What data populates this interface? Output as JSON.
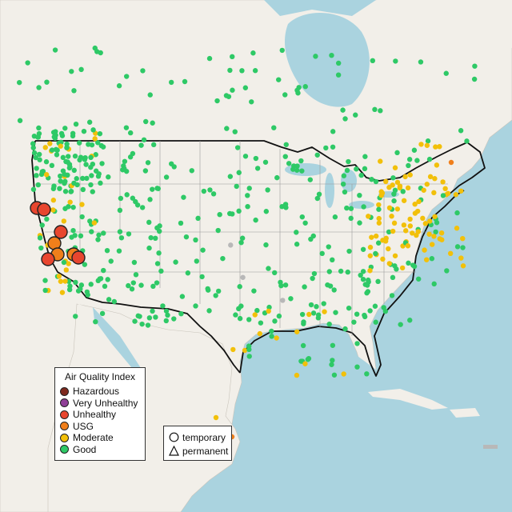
{
  "legend": {
    "title": "Air Quality Index",
    "categories": [
      {
        "label": "Hazardous",
        "color": "#7e2a1e"
      },
      {
        "label": "Very Unhealthy",
        "color": "#8f3f97"
      },
      {
        "label": "Unhealthy",
        "color": "#e8462f"
      },
      {
        "label": "USG",
        "color": "#f07f1b"
      },
      {
        "label": "Moderate",
        "color": "#f2c00a"
      },
      {
        "label": "Good",
        "color": "#2ec966"
      }
    ]
  },
  "marker_legend": {
    "temporary_label": "temporary",
    "permanent_label": "permanent"
  },
  "colors": {
    "water": "#aad3df",
    "land": "#f2efe9",
    "usa_land": "#e9e6e1",
    "no_data": "#b8b8b8",
    "border": "#111111"
  }
}
